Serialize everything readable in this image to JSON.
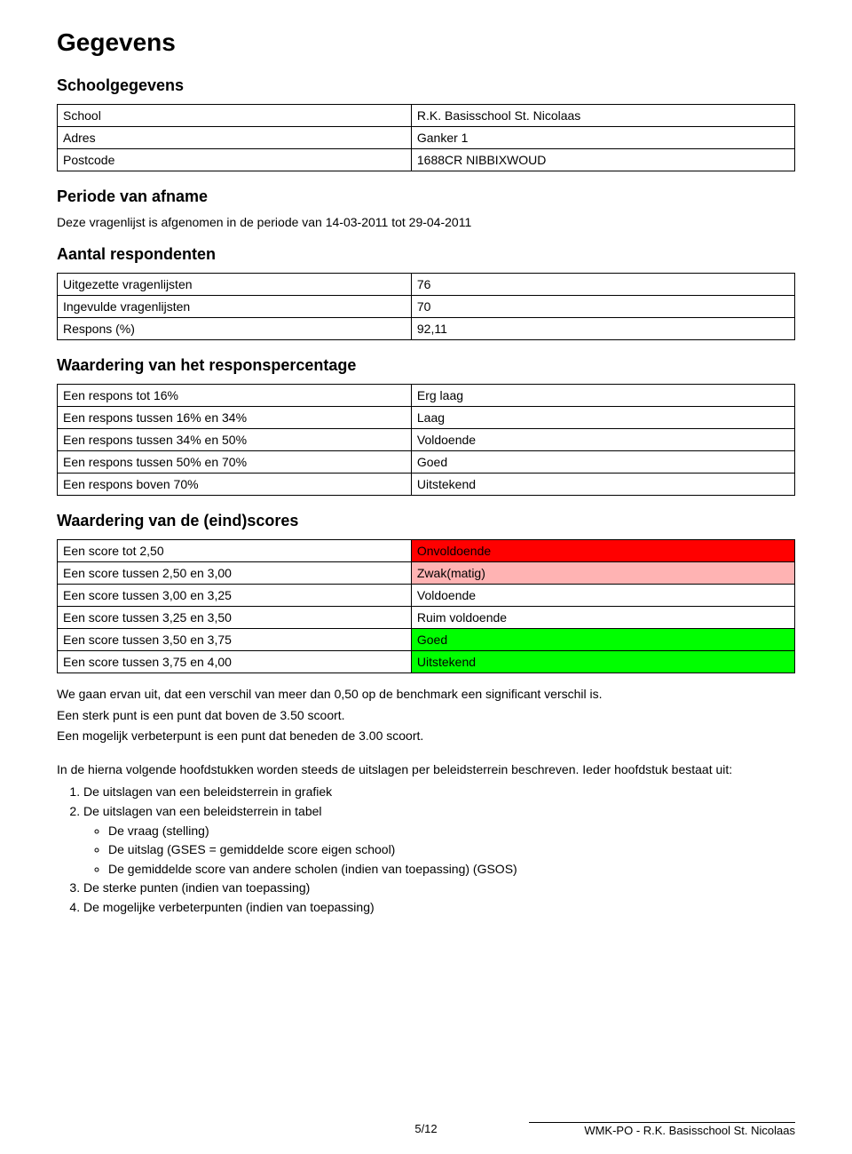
{
  "main_title": "Gegevens",
  "schoolgegevens": {
    "heading": "Schoolgegevens",
    "rows": [
      {
        "label": "School",
        "value": "R.K. Basisschool St. Nicolaas"
      },
      {
        "label": "Adres",
        "value": "Ganker 1"
      },
      {
        "label": "Postcode",
        "value": "1688CR NIBBIXWOUD"
      }
    ]
  },
  "periode": {
    "heading": "Periode van afname",
    "text": "Deze vragenlijst is afgenomen in de periode van 14-03-2011 tot 29-04-2011"
  },
  "respondenten": {
    "heading": "Aantal respondenten",
    "rows": [
      {
        "label": "Uitgezette vragenlijsten",
        "value": "76"
      },
      {
        "label": "Ingevulde vragenlijsten",
        "value": "70"
      },
      {
        "label": "Respons (%)",
        "value": "92,11"
      }
    ]
  },
  "responspercentage": {
    "heading": "Waardering van het responspercentage",
    "rows": [
      {
        "label": "Een respons tot 16%",
        "value": "Erg laag",
        "bg": "#ffffff",
        "fg": "#000000"
      },
      {
        "label": "Een respons tussen 16% en 34%",
        "value": "Laag",
        "bg": "#ffffff",
        "fg": "#000000"
      },
      {
        "label": "Een respons tussen 34% en 50%",
        "value": "Voldoende",
        "bg": "#ffffff",
        "fg": "#000000"
      },
      {
        "label": "Een respons tussen 50% en 70%",
        "value": "Goed",
        "bg": "#ffffff",
        "fg": "#000000"
      },
      {
        "label": "Een respons boven 70%",
        "value": "Uitstekend",
        "bg": "#ffffff",
        "fg": "#000000"
      }
    ]
  },
  "eindscores": {
    "heading": "Waardering van de (eind)scores",
    "rows": [
      {
        "label": "Een score tot 2,50",
        "value": "Onvoldoende",
        "bg": "#ff0000",
        "fg": "#000000"
      },
      {
        "label": "Een score tussen 2,50 en 3,00",
        "value": "Zwak(matig)",
        "bg": "#ffb3b3",
        "fg": "#000000"
      },
      {
        "label": "Een score tussen 3,00 en 3,25",
        "value": "Voldoende",
        "bg": "#ffffff",
        "fg": "#000000"
      },
      {
        "label": "Een score tussen 3,25 en 3,50",
        "value": "Ruim voldoende",
        "bg": "#ffffff",
        "fg": "#000000"
      },
      {
        "label": "Een score tussen 3,50 en 3,75",
        "value": "Goed",
        "bg": "#00ff00",
        "fg": "#000000"
      },
      {
        "label": "Een score tussen 3,75 en 4,00",
        "value": "Uitstekend",
        "bg": "#00ff00",
        "fg": "#000000"
      }
    ]
  },
  "body_paragraphs": [
    "We gaan ervan uit, dat een verschil van meer dan 0,50 op de benchmark een significant verschil is.",
    "Een sterk punt is een punt dat boven de 3.50 scoort.",
    "Een mogelijk verbeterpunt is een punt dat beneden de 3.00 scoort."
  ],
  "body_spaced": "In de hierna volgende hoofdstukken worden steeds de uitslagen per beleidsterrein beschreven. Ieder hoofdstuk bestaat uit:",
  "list": {
    "items": [
      {
        "text": "De uitslagen van een beleidsterrein in grafiek"
      },
      {
        "text": "De uitslagen van een beleidsterrein in tabel",
        "sub": [
          "De vraag (stelling)",
          "De uitslag (GSES = gemiddelde score eigen school)",
          "De gemiddelde score van andere scholen (indien van toepassing) (GSOS)"
        ]
      },
      {
        "text": "De sterke punten (indien van toepassing)"
      },
      {
        "text": "De mogelijke verbeterpunten (indien van toepassing)"
      }
    ]
  },
  "footer": {
    "page": "5/12",
    "doc": "WMK-PO - R.K. Basisschool St. Nicolaas"
  }
}
